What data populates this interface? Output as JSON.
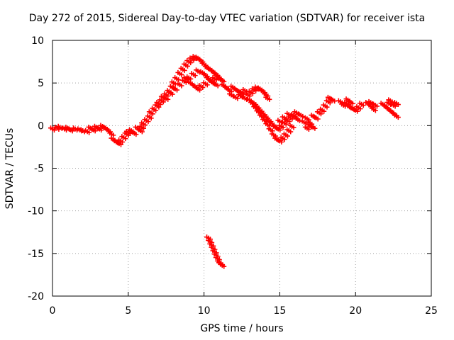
{
  "chart_data": {
    "type": "scatter",
    "title": "Day 272 of 2015, Sidereal Day-to-day VTEC variation (SDTVAR) for receiver ista",
    "xlabel": "GPS time / hours",
    "ylabel": "SDTVAR / TECUs",
    "xlim": [
      0,
      25
    ],
    "ylim": [
      -20,
      10
    ],
    "xticks": [
      0,
      5,
      10,
      15,
      20,
      25
    ],
    "yticks": [
      10,
      5,
      0,
      -5,
      -10,
      -15,
      -20
    ],
    "grid": true,
    "marker": "+",
    "color": "#ff0000",
    "series": [
      {
        "name": "ista",
        "points": [
          [
            0.0,
            -0.4
          ],
          [
            0.3,
            -0.3
          ],
          [
            0.5,
            -0.2
          ],
          [
            0.8,
            -0.4
          ],
          [
            1.0,
            -0.3
          ],
          [
            1.2,
            -0.5
          ],
          [
            1.5,
            -0.4
          ],
          [
            1.8,
            -0.5
          ],
          [
            2.0,
            -0.6
          ],
          [
            2.3,
            -0.7
          ],
          [
            2.5,
            -0.3
          ],
          [
            2.7,
            -0.5
          ],
          [
            2.9,
            -0.2
          ],
          [
            3.1,
            -0.4
          ],
          [
            3.3,
            -0.1
          ],
          [
            3.5,
            -0.3
          ],
          [
            3.7,
            -0.6
          ],
          [
            3.9,
            -1.0
          ],
          [
            4.0,
            -1.6
          ],
          [
            4.2,
            -1.9
          ],
          [
            4.4,
            -2.1
          ],
          [
            4.5,
            -1.8
          ],
          [
            4.7,
            -1.4
          ],
          [
            4.9,
            -1.0
          ],
          [
            5.0,
            -0.8
          ],
          [
            5.2,
            -0.6
          ],
          [
            5.4,
            -0.9
          ],
          [
            5.6,
            -0.3
          ],
          [
            5.8,
            -0.6
          ],
          [
            5.9,
            -0.2
          ],
          [
            6.0,
            0.2
          ],
          [
            6.2,
            0.6
          ],
          [
            6.4,
            1.0
          ],
          [
            6.5,
            1.5
          ],
          [
            6.7,
            1.9
          ],
          [
            6.9,
            2.3
          ],
          [
            7.0,
            2.6
          ],
          [
            7.2,
            2.9
          ],
          [
            7.3,
            3.3
          ],
          [
            7.5,
            3.6
          ],
          [
            7.7,
            4.0
          ],
          [
            7.9,
            4.5
          ],
          [
            8.0,
            5.0
          ],
          [
            8.2,
            5.5
          ],
          [
            8.4,
            6.1
          ],
          [
            8.6,
            6.6
          ],
          [
            8.8,
            7.1
          ],
          [
            9.0,
            7.5
          ],
          [
            9.2,
            7.8
          ],
          [
            9.4,
            8.0
          ],
          [
            9.6,
            7.9
          ],
          [
            9.8,
            7.6
          ],
          [
            10.0,
            7.2
          ],
          [
            10.2,
            6.8
          ],
          [
            10.4,
            6.6
          ],
          [
            10.6,
            6.3
          ],
          [
            10.8,
            6.0
          ],
          [
            11.0,
            5.6
          ],
          [
            11.2,
            5.3
          ],
          [
            7.5,
            3.2
          ],
          [
            7.8,
            3.8
          ],
          [
            8.1,
            4.3
          ],
          [
            8.4,
            4.8
          ],
          [
            8.7,
            5.2
          ],
          [
            9.0,
            5.6
          ],
          [
            9.3,
            6.0
          ],
          [
            9.6,
            6.4
          ],
          [
            9.9,
            6.2
          ],
          [
            10.1,
            5.9
          ],
          [
            10.3,
            5.5
          ],
          [
            10.5,
            5.2
          ],
          [
            10.7,
            5.5
          ],
          [
            10.9,
            5.8
          ],
          [
            11.1,
            5.4
          ],
          [
            8.8,
            5.5
          ],
          [
            9.1,
            5.0
          ],
          [
            9.4,
            4.6
          ],
          [
            9.6,
            4.3
          ],
          [
            9.8,
            4.6
          ],
          [
            10.1,
            4.9
          ],
          [
            10.4,
            5.3
          ],
          [
            10.6,
            5.0
          ],
          [
            10.8,
            4.8
          ],
          [
            11.3,
            4.7
          ],
          [
            11.5,
            4.4
          ],
          [
            11.7,
            4.1
          ],
          [
            11.9,
            4.5
          ],
          [
            12.1,
            4.2
          ],
          [
            12.3,
            4.0
          ],
          [
            12.5,
            3.8
          ],
          [
            12.7,
            4.1
          ],
          [
            12.9,
            3.6
          ],
          [
            13.1,
            3.9
          ],
          [
            13.3,
            4.2
          ],
          [
            13.5,
            4.4
          ],
          [
            13.7,
            4.3
          ],
          [
            13.9,
            4.0
          ],
          [
            14.1,
            3.6
          ],
          [
            14.2,
            3.2
          ],
          [
            11.8,
            3.6
          ],
          [
            12.1,
            3.3
          ],
          [
            12.4,
            3.5
          ],
          [
            12.7,
            3.2
          ],
          [
            13.0,
            3.0
          ],
          [
            13.2,
            2.6
          ],
          [
            13.4,
            2.1
          ],
          [
            13.6,
            1.6
          ],
          [
            13.8,
            1.1
          ],
          [
            14.0,
            0.6
          ],
          [
            14.2,
            0.1
          ],
          [
            14.4,
            -0.5
          ],
          [
            14.6,
            -1.1
          ],
          [
            14.8,
            -1.6
          ],
          [
            15.0,
            -1.8
          ],
          [
            15.2,
            -1.5
          ],
          [
            15.4,
            -1.1
          ],
          [
            15.6,
            -0.6
          ],
          [
            15.8,
            -0.1
          ],
          [
            13.3,
            2.6
          ],
          [
            13.5,
            2.2
          ],
          [
            13.7,
            1.8
          ],
          [
            13.9,
            1.4
          ],
          [
            14.1,
            1.0
          ],
          [
            14.3,
            0.6
          ],
          [
            14.5,
            0.2
          ],
          [
            14.7,
            -0.2
          ],
          [
            14.9,
            -0.4
          ],
          [
            15.1,
            -0.1
          ],
          [
            15.3,
            0.3
          ],
          [
            15.5,
            0.6
          ],
          [
            15.7,
            0.9
          ],
          [
            15.9,
            1.2
          ],
          [
            16.1,
            1.5
          ],
          [
            15.0,
            0.5
          ],
          [
            15.3,
            0.9
          ],
          [
            15.6,
            1.3
          ],
          [
            16.0,
            1.0
          ],
          [
            16.2,
            0.7
          ],
          [
            16.4,
            1.2
          ],
          [
            16.6,
            0.4
          ],
          [
            16.8,
            0.8
          ],
          [
            17.0,
            0.3
          ],
          [
            17.2,
            1.1
          ],
          [
            17.4,
            0.9
          ],
          [
            17.6,
            1.5
          ],
          [
            17.8,
            1.8
          ],
          [
            18.0,
            2.3
          ],
          [
            18.2,
            2.8
          ],
          [
            18.3,
            3.2
          ],
          [
            18.5,
            3.0
          ],
          [
            16.8,
            -0.3
          ],
          [
            17.0,
            0.0
          ],
          [
            17.2,
            -0.2
          ],
          [
            19.0,
            2.8
          ],
          [
            19.2,
            2.4
          ],
          [
            19.4,
            2.6
          ],
          [
            19.6,
            2.2
          ],
          [
            19.8,
            2.0
          ],
          [
            20.0,
            1.8
          ],
          [
            20.2,
            2.1
          ],
          [
            20.4,
            2.5
          ],
          [
            19.5,
            3.0
          ],
          [
            19.7,
            2.7
          ],
          [
            20.8,
            2.6
          ],
          [
            21.0,
            2.3
          ],
          [
            21.2,
            1.9
          ],
          [
            21.0,
            2.7
          ],
          [
            21.3,
            2.4
          ],
          [
            21.8,
            2.5
          ],
          [
            22.0,
            2.2
          ],
          [
            22.2,
            1.9
          ],
          [
            22.4,
            1.6
          ],
          [
            22.6,
            1.3
          ],
          [
            22.7,
            1.1
          ],
          [
            22.2,
            2.6
          ],
          [
            22.5,
            2.4
          ],
          [
            22.7,
            2.6
          ],
          [
            22.3,
            2.9
          ],
          [
            10.3,
            -13.2
          ],
          [
            10.4,
            -13.6
          ],
          [
            10.5,
            -14.0
          ],
          [
            10.6,
            -14.4
          ],
          [
            10.7,
            -14.8
          ],
          [
            10.8,
            -15.2
          ],
          [
            10.9,
            -15.6
          ],
          [
            11.0,
            -16.0
          ],
          [
            11.1,
            -16.2
          ],
          [
            11.2,
            -16.4
          ]
        ]
      }
    ]
  }
}
